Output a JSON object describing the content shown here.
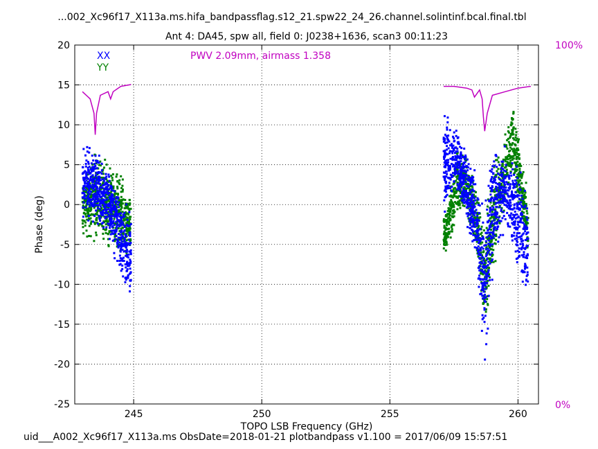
{
  "header": {
    "title_line1": "...002_Xc96f17_X113a.ms.hifa_bandpassflag.s12_21.spw22_24_26.channel.solintinf.bcal.final.tbl",
    "title_line2": "Ant 4: DA45,  spw all,  field 0: J0238+1636,  scan3  00:11:23"
  },
  "footer": {
    "text": "uid___A002_Xc96f17_X113a.ms  ObsDate=2018-01-21   plotbandpass v1.100 = 2017/06/09 15:57:51"
  },
  "colors": {
    "xx": "#0000ff",
    "yy": "#008000",
    "pwv": "#c000c0",
    "axis": "#000000",
    "grid": "#000000"
  },
  "chart_data": {
    "type": "scatter",
    "title": "Ant 4: DA45,  spw all,  field 0: J0238+1636,  scan3  00:11:23",
    "xlabel": "TOPO LSB Frequency (GHz)",
    "ylabel": "Phase (deg)",
    "xlim": [
      242.7,
      260.8
    ],
    "ylim": [
      -25,
      20
    ],
    "xticks": [
      245,
      250,
      255,
      260
    ],
    "yticks": [
      -25,
      -20,
      -15,
      -10,
      -5,
      0,
      5,
      10,
      15,
      20
    ],
    "grid": true,
    "right_axis": {
      "min_label": "0%",
      "max_label": "100%"
    },
    "annotation": "PWV 2.09mm, airmass 1.358",
    "legend": {
      "placement": "top-left",
      "entries": [
        "XX",
        "YY"
      ]
    },
    "series": [
      {
        "name": "XX",
        "freq_ranges": [
          [
            243.0,
            244.9
          ],
          [
            257.1,
            260.4
          ]
        ],
        "envelope": [
          {
            "x": 243.0,
            "lo": -4,
            "hi": 8
          },
          {
            "x": 243.3,
            "lo": -3,
            "hi": 9
          },
          {
            "x": 243.6,
            "lo": -4,
            "hi": 7
          },
          {
            "x": 244.0,
            "lo": -5,
            "hi": 6
          },
          {
            "x": 244.3,
            "lo": -8,
            "hi": 4
          },
          {
            "x": 244.6,
            "lo": -12,
            "hi": 2
          },
          {
            "x": 244.9,
            "lo": -13,
            "hi": 0
          },
          {
            "x": 257.2,
            "lo": -2,
            "hi": 12
          },
          {
            "x": 257.6,
            "lo": 0,
            "hi": 11
          },
          {
            "x": 258.0,
            "lo": -4,
            "hi": 8
          },
          {
            "x": 258.4,
            "lo": -10,
            "hi": 5
          },
          {
            "x": 258.7,
            "lo": -22,
            "hi": 1
          },
          {
            "x": 259.0,
            "lo": -10,
            "hi": 9
          },
          {
            "x": 259.5,
            "lo": -3,
            "hi": 8
          },
          {
            "x": 260.0,
            "lo": -10,
            "hi": 6
          },
          {
            "x": 260.4,
            "lo": -14,
            "hi": 2
          }
        ]
      },
      {
        "name": "YY",
        "freq_ranges": [
          [
            243.0,
            244.9
          ],
          [
            257.1,
            260.4
          ]
        ],
        "envelope": [
          {
            "x": 243.0,
            "lo": -5,
            "hi": 4
          },
          {
            "x": 243.5,
            "lo": -6,
            "hi": 8
          },
          {
            "x": 244.0,
            "lo": -6,
            "hi": 6
          },
          {
            "x": 244.5,
            "lo": -7,
            "hi": 5
          },
          {
            "x": 244.9,
            "lo": -8,
            "hi": 2
          },
          {
            "x": 257.2,
            "lo": -7,
            "hi": 0
          },
          {
            "x": 257.6,
            "lo": -3,
            "hi": 8
          },
          {
            "x": 258.0,
            "lo": -2,
            "hi": 7
          },
          {
            "x": 258.4,
            "lo": -8,
            "hi": 3
          },
          {
            "x": 258.7,
            "lo": -19,
            "hi": -2
          },
          {
            "x": 259.0,
            "lo": -10,
            "hi": 6
          },
          {
            "x": 259.5,
            "lo": -2,
            "hi": 10
          },
          {
            "x": 259.8,
            "lo": 3,
            "hi": 15
          },
          {
            "x": 260.1,
            "lo": -3,
            "hi": 8
          },
          {
            "x": 260.4,
            "lo": -8,
            "hi": 2
          }
        ]
      }
    ],
    "pwv_curve": {
      "name": "PWV transmission",
      "percent_scale": [
        0,
        100
      ],
      "segments": [
        {
          "x": [
            243.0,
            243.3,
            243.45,
            243.5,
            243.55,
            243.7,
            244.0,
            244.1,
            244.2,
            244.5,
            244.9
          ],
          "pct": [
            87.0,
            85.0,
            81.0,
            75.0,
            81.0,
            86.0,
            87.0,
            85.0,
            87.0,
            88.5,
            89.0
          ]
        },
        {
          "x": [
            257.1,
            257.5,
            258.0,
            258.2,
            258.3,
            258.5,
            258.6,
            258.65,
            258.7,
            258.8,
            259.0,
            259.5,
            260.0,
            260.5
          ],
          "pct": [
            88.5,
            88.5,
            88.0,
            87.5,
            85.5,
            87.5,
            85.0,
            80.0,
            76.0,
            81.0,
            86.0,
            87.0,
            88.0,
            88.5
          ]
        }
      ]
    }
  }
}
